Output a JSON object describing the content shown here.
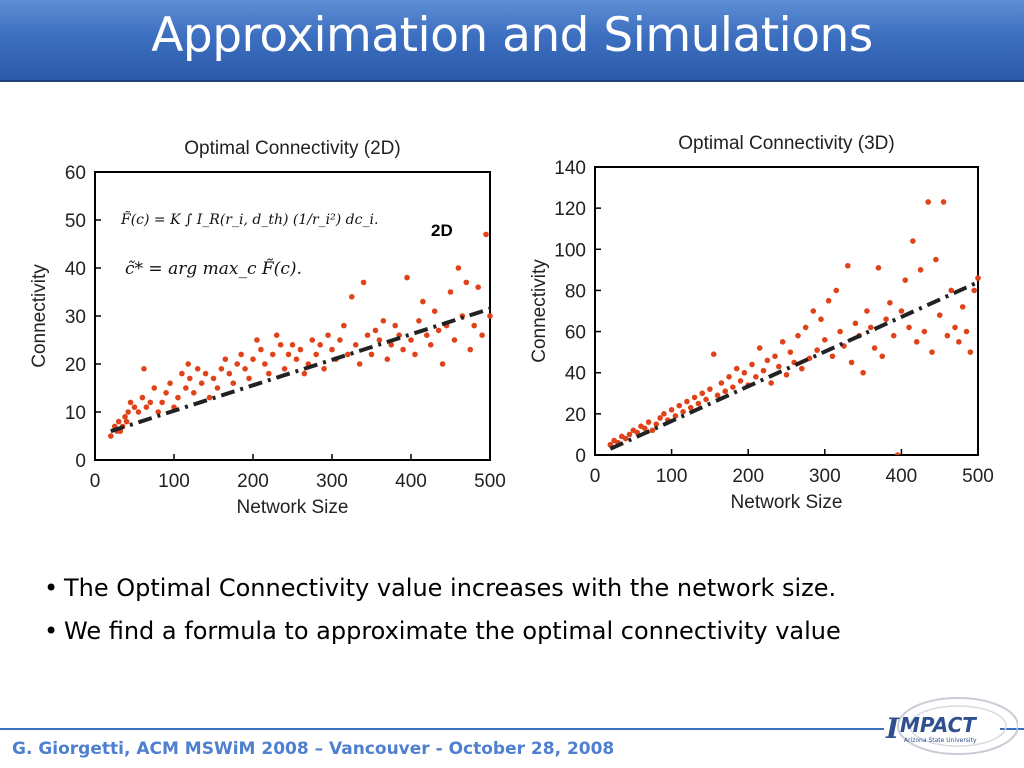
{
  "slide": {
    "title": "Approximation and Simulations",
    "bullets": [
      "The Optimal Connectivity value increases with the network size.",
      "We find a formula to approximate the optimal connectivity value"
    ],
    "bullet_symbol": "•",
    "footer": "G. Giorgetti, ACM MSWiM 2008 – Vancouver - October 28, 2008",
    "logo_text": "IMPACT",
    "logo_subtext": "Arizona State University"
  },
  "colors": {
    "title_bar": "#3d6fc0",
    "footer_text": "#4f7fcf",
    "marker": "#e0431a",
    "fit_line": "#222222"
  },
  "chart_data": [
    {
      "type": "scatter",
      "title": "Optimal Connectivity (2D)",
      "xlabel": "Network Size",
      "ylabel": "Connectivity",
      "xlim": [
        0,
        500
      ],
      "ylim": [
        0,
        60
      ],
      "xticks": [
        "0",
        "100",
        "200",
        "300",
        "400",
        "500"
      ],
      "yticks": [
        "0",
        "10",
        "20",
        "30",
        "40",
        "50",
        "60"
      ],
      "annotation": "2D",
      "formula_lines": [
        "F̃(c) = K ∫ I_R(r_i, d_th) (1/r_i²) dc_i.",
        "c̃* = arg max_c F̃(c)."
      ],
      "fit_line": [
        [
          20,
          6
        ],
        [
          500,
          31.5
        ]
      ],
      "points": [
        [
          20,
          5
        ],
        [
          25,
          7
        ],
        [
          28,
          6
        ],
        [
          30,
          8
        ],
        [
          32,
          6
        ],
        [
          35,
          7
        ],
        [
          38,
          9
        ],
        [
          40,
          8
        ],
        [
          42,
          10
        ],
        [
          45,
          12
        ],
        [
          50,
          11
        ],
        [
          55,
          10
        ],
        [
          60,
          13
        ],
        [
          62,
          19
        ],
        [
          65,
          11
        ],
        [
          70,
          12
        ],
        [
          75,
          15
        ],
        [
          80,
          10
        ],
        [
          85,
          12
        ],
        [
          90,
          14
        ],
        [
          95,
          16
        ],
        [
          100,
          11
        ],
        [
          105,
          13
        ],
        [
          110,
          18
        ],
        [
          115,
          15
        ],
        [
          118,
          20
        ],
        [
          120,
          17
        ],
        [
          125,
          14
        ],
        [
          130,
          19
        ],
        [
          135,
          16
        ],
        [
          140,
          18
        ],
        [
          145,
          13
        ],
        [
          150,
          17
        ],
        [
          155,
          15
        ],
        [
          160,
          19
        ],
        [
          165,
          21
        ],
        [
          170,
          18
        ],
        [
          175,
          16
        ],
        [
          180,
          20
        ],
        [
          185,
          22
        ],
        [
          190,
          19
        ],
        [
          195,
          17
        ],
        [
          200,
          21
        ],
        [
          205,
          25
        ],
        [
          210,
          23
        ],
        [
          215,
          20
        ],
        [
          220,
          18
        ],
        [
          225,
          22
        ],
        [
          230,
          26
        ],
        [
          235,
          24
        ],
        [
          240,
          19
        ],
        [
          245,
          22
        ],
        [
          250,
          24
        ],
        [
          255,
          21
        ],
        [
          260,
          23
        ],
        [
          265,
          18
        ],
        [
          270,
          20
        ],
        [
          275,
          25
        ],
        [
          280,
          22
        ],
        [
          285,
          24
        ],
        [
          290,
          19
        ],
        [
          295,
          26
        ],
        [
          300,
          23
        ],
        [
          305,
          21
        ],
        [
          310,
          25
        ],
        [
          315,
          28
        ],
        [
          320,
          22
        ],
        [
          325,
          34
        ],
        [
          330,
          24
        ],
        [
          335,
          20
        ],
        [
          340,
          37
        ],
        [
          345,
          26
        ],
        [
          350,
          22
        ],
        [
          355,
          27
        ],
        [
          360,
          25
        ],
        [
          365,
          29
        ],
        [
          370,
          21
        ],
        [
          375,
          24
        ],
        [
          380,
          28
        ],
        [
          385,
          26
        ],
        [
          390,
          23
        ],
        [
          395,
          38
        ],
        [
          400,
          25
        ],
        [
          405,
          22
        ],
        [
          410,
          29
        ],
        [
          415,
          33
        ],
        [
          420,
          26
        ],
        [
          425,
          24
        ],
        [
          430,
          31
        ],
        [
          435,
          27
        ],
        [
          440,
          20
        ],
        [
          445,
          28
        ],
        [
          450,
          35
        ],
        [
          455,
          25
        ],
        [
          460,
          40
        ],
        [
          465,
          30
        ],
        [
          470,
          37
        ],
        [
          475,
          23
        ],
        [
          480,
          28
        ],
        [
          485,
          36
        ],
        [
          490,
          26
        ],
        [
          495,
          47
        ],
        [
          500,
          30
        ]
      ]
    },
    {
      "type": "scatter",
      "title": "Optimal Connectivity (3D)",
      "xlabel": "Network Size",
      "ylabel": "Connectivity",
      "xlim": [
        0,
        500
      ],
      "ylim": [
        0,
        140
      ],
      "xticks": [
        "0",
        "100",
        "200",
        "300",
        "400",
        "500"
      ],
      "yticks": [
        "0",
        "20",
        "40",
        "60",
        "80",
        "100",
        "120",
        "140"
      ],
      "fit_line": [
        [
          20,
          3
        ],
        [
          500,
          84
        ]
      ],
      "points": [
        [
          20,
          5
        ],
        [
          25,
          7
        ],
        [
          30,
          6
        ],
        [
          35,
          9
        ],
        [
          40,
          8
        ],
        [
          45,
          10
        ],
        [
          50,
          12
        ],
        [
          55,
          11
        ],
        [
          60,
          14
        ],
        [
          65,
          13
        ],
        [
          70,
          16
        ],
        [
          75,
          12
        ],
        [
          80,
          15
        ],
        [
          85,
          18
        ],
        [
          90,
          20
        ],
        [
          95,
          17
        ],
        [
          100,
          22
        ],
        [
          105,
          19
        ],
        [
          110,
          24
        ],
        [
          115,
          21
        ],
        [
          120,
          26
        ],
        [
          125,
          23
        ],
        [
          130,
          28
        ],
        [
          135,
          25
        ],
        [
          140,
          30
        ],
        [
          145,
          27
        ],
        [
          150,
          32
        ],
        [
          155,
          49
        ],
        [
          160,
          29
        ],
        [
          165,
          35
        ],
        [
          170,
          31
        ],
        [
          175,
          38
        ],
        [
          180,
          33
        ],
        [
          185,
          42
        ],
        [
          190,
          36
        ],
        [
          195,
          40
        ],
        [
          200,
          34
        ],
        [
          205,
          44
        ],
        [
          210,
          38
        ],
        [
          215,
          52
        ],
        [
          220,
          41
        ],
        [
          225,
          46
        ],
        [
          230,
          35
        ],
        [
          235,
          48
        ],
        [
          240,
          43
        ],
        [
          245,
          55
        ],
        [
          250,
          39
        ],
        [
          255,
          50
        ],
        [
          260,
          45
        ],
        [
          265,
          58
        ],
        [
          270,
          42
        ],
        [
          275,
          62
        ],
        [
          280,
          47
        ],
        [
          285,
          70
        ],
        [
          290,
          51
        ],
        [
          295,
          66
        ],
        [
          300,
          56
        ],
        [
          305,
          75
        ],
        [
          310,
          48
        ],
        [
          315,
          80
        ],
        [
          320,
          60
        ],
        [
          325,
          53
        ],
        [
          330,
          92
        ],
        [
          335,
          45
        ],
        [
          340,
          64
        ],
        [
          345,
          58
        ],
        [
          350,
          40
        ],
        [
          355,
          70
        ],
        [
          360,
          62
        ],
        [
          365,
          52
        ],
        [
          370,
          91
        ],
        [
          375,
          48
        ],
        [
          380,
          66
        ],
        [
          385,
          74
        ],
        [
          390,
          58
        ],
        [
          395,
          0
        ],
        [
          400,
          70
        ],
        [
          405,
          85
        ],
        [
          410,
          62
        ],
        [
          415,
          104
        ],
        [
          420,
          55
        ],
        [
          425,
          90
        ],
        [
          430,
          60
        ],
        [
          435,
          123
        ],
        [
          440,
          50
        ],
        [
          445,
          95
        ],
        [
          450,
          68
        ],
        [
          455,
          123
        ],
        [
          460,
          58
        ],
        [
          465,
          80
        ],
        [
          470,
          62
        ],
        [
          475,
          55
        ],
        [
          480,
          72
        ],
        [
          485,
          60
        ],
        [
          490,
          50
        ],
        [
          495,
          80
        ],
        [
          500,
          86
        ]
      ]
    }
  ]
}
